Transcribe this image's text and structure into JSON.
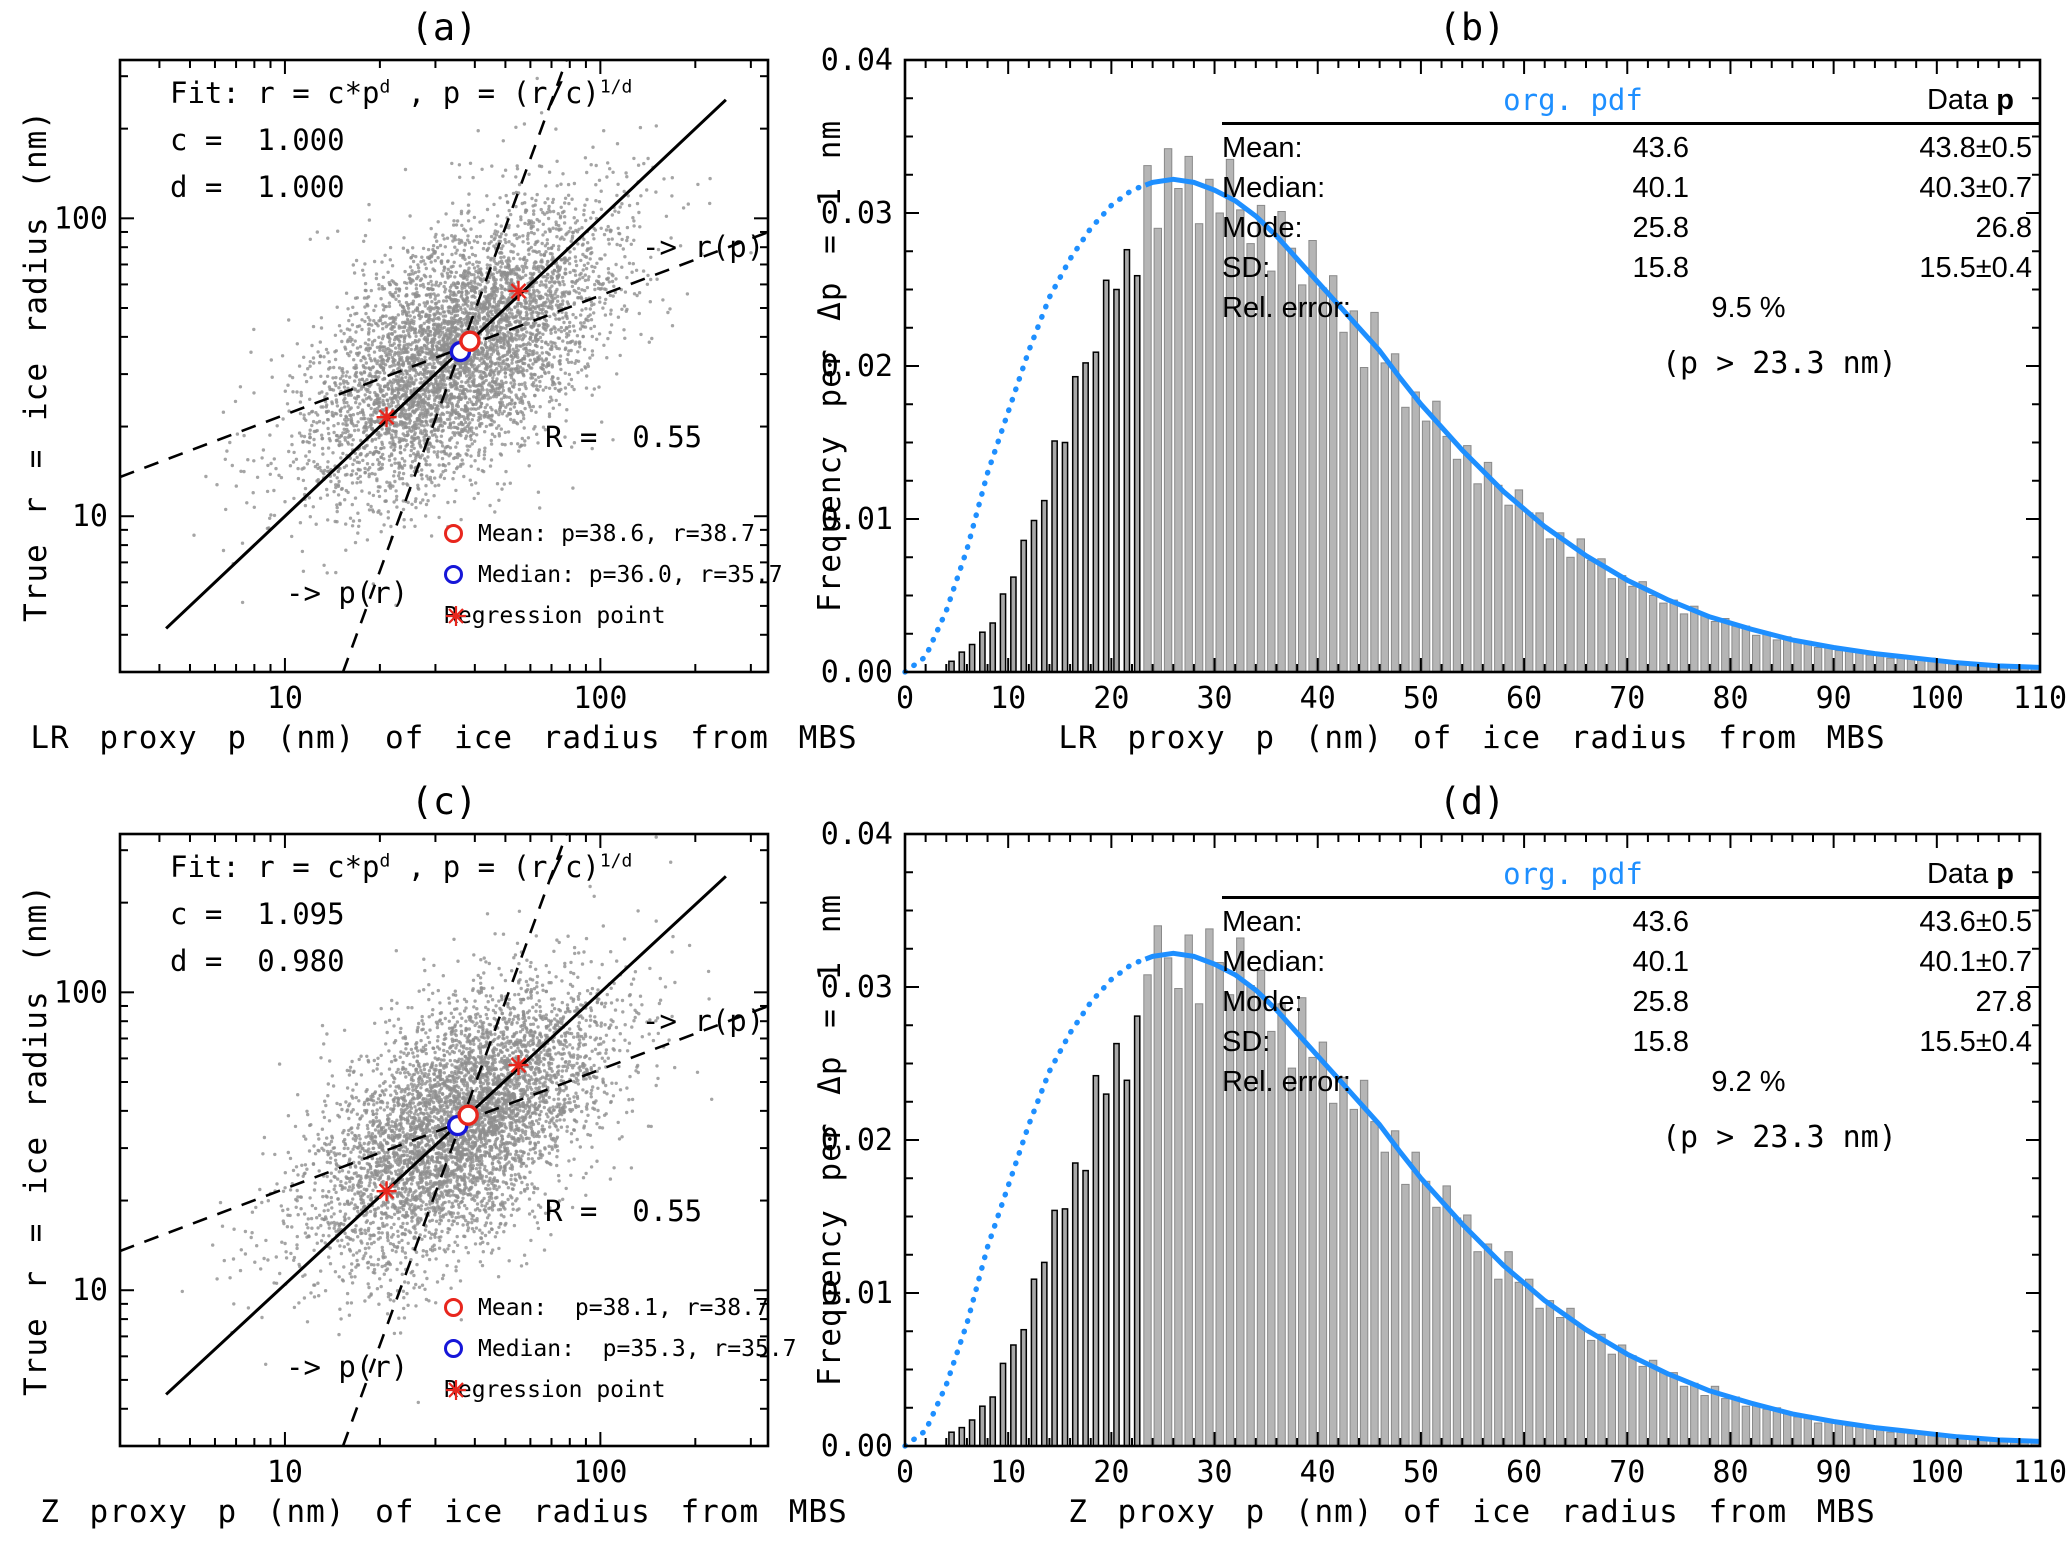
{
  "colors": {
    "accent_blue": "#1e8fff",
    "red": "#e8261d",
    "blue": "#1616d8",
    "gray_points": "#8f8f8f",
    "bar_fill": "#b5b5b5",
    "bar_edge": "#8a8a8a"
  },
  "chart_data": [
    {
      "id": "a",
      "type": "scatter",
      "title": "(a)",
      "xlabel": "LR proxy p (nm) of ice radius from MBS",
      "ylabel": "True r = ice radius (nm)",
      "xscale": "log",
      "yscale": "log",
      "xlim": [
        3,
        340
      ],
      "ylim": [
        3,
        340
      ],
      "major_ticks": [
        10,
        100
      ],
      "minor_ticks": [
        4,
        5,
        6,
        7,
        8,
        9,
        20,
        30,
        40,
        50,
        60,
        70,
        80,
        90,
        200,
        300
      ],
      "fit": {
        "prefix": "Fit: r = c*p",
        "sup1": "d",
        "mid": " , p = (r/c)",
        "sup2": "1/d",
        "c_line": "c =  1.000",
        "d_line": "d =  1.000"
      },
      "fit_coeffs": {
        "c": 1.0,
        "d": 1.0
      },
      "R_value": 0.55,
      "r_label": "R =  0.55",
      "legend": {
        "mean": "Mean: p=38.6, r=38.7",
        "median": "Median: p=36.0, r=35.7",
        "regression": "Regression point"
      },
      "mean_point": {
        "p": 38.6,
        "r": 38.7
      },
      "median_point": {
        "p": 36.0,
        "r": 35.7
      },
      "regression_points": [
        [
          21,
          21.5
        ],
        [
          55,
          57
        ]
      ],
      "rp_line": {
        "slope": 0.4,
        "through": [
          37,
          37
        ],
        "label": "-> r(p)"
      },
      "pr_line": {
        "slope": 2.9,
        "through": [
          36,
          36
        ],
        "label": "-> p(r)"
      },
      "scatter_cloud": {
        "n": 5000,
        "seed": 7,
        "mu_ln": 3.58,
        "sigma_ln": 0.54,
        "correlation": 0.55
      }
    },
    {
      "id": "b",
      "type": "histogram",
      "title": "(b)",
      "xlabel": "LR proxy p (nm) of ice radius from MBS",
      "ylabel": "Frequency per Δp = 1 nm",
      "xlim": [
        0,
        110
      ],
      "ylim": [
        0,
        0.04
      ],
      "xticks": [
        0,
        10,
        20,
        30,
        40,
        50,
        60,
        70,
        80,
        90,
        100,
        110
      ],
      "yticks": [
        0.0,
        0.01,
        0.02,
        0.03,
        0.04
      ],
      "cutoff": 23.3,
      "note": "(p > 23.3 nm)",
      "stats": {
        "col1_header": "org. pdf",
        "col2_header": "Data",
        "col2_header_p": "p",
        "rows": [
          {
            "label": "Mean:",
            "pdf": "43.6",
            "data": "43.8±0.5"
          },
          {
            "label": "Median:",
            "pdf": "40.1",
            "data": "40.3±0.7"
          },
          {
            "label": "Mode:",
            "pdf": "25.8",
            "data": "26.8"
          },
          {
            "label": "SD:",
            "pdf": "15.8",
            "data": "15.5±0.4"
          }
        ],
        "rel_error_label": "Rel. error:",
        "rel_error": "9.5 %"
      },
      "pdf_curve": {
        "x": [
          0,
          2,
          4,
          6,
          8,
          10,
          12,
          14,
          16,
          18,
          20,
          22,
          24,
          26,
          28,
          30,
          32,
          34,
          36,
          38,
          40,
          42,
          44,
          46,
          48,
          50,
          54,
          58,
          62,
          66,
          70,
          74,
          78,
          82,
          86,
          90,
          94,
          98,
          102,
          106,
          110
        ],
        "y": [
          0,
          0.001,
          0.004,
          0.008,
          0.013,
          0.017,
          0.021,
          0.0245,
          0.027,
          0.029,
          0.0305,
          0.0315,
          0.032,
          0.0322,
          0.032,
          0.0315,
          0.0308,
          0.0298,
          0.0285,
          0.027,
          0.0255,
          0.024,
          0.0225,
          0.021,
          0.0192,
          0.0175,
          0.0145,
          0.0118,
          0.0095,
          0.0076,
          0.006,
          0.0047,
          0.0036,
          0.0028,
          0.0021,
          0.0016,
          0.0012,
          0.0009,
          0.0006,
          0.0004,
          0.0003
        ]
      },
      "bars": {
        "start": 0,
        "width": 1,
        "values": [
          0,
          0,
          0,
          0,
          0.0007,
          0.0013,
          0.0018,
          0.0026,
          0.0032,
          0.0051,
          0.0062,
          0.0086,
          0.0099,
          0.0112,
          0.0151,
          0.015,
          0.0193,
          0.0202,
          0.0209,
          0.0256,
          0.025,
          0.0276,
          0.0259,
          0.0331,
          0.029,
          0.0342,
          0.0316,
          0.0337,
          0.0293,
          0.0322,
          0.03,
          0.0335,
          0.0302,
          0.028,
          0.0305,
          0.0262,
          0.0301,
          0.0277,
          0.0253,
          0.0282,
          0.0251,
          0.0259,
          0.0222,
          0.0236,
          0.0199,
          0.0235,
          0.0202,
          0.0208,
          0.0173,
          0.0183,
          0.0164,
          0.0177,
          0.0154,
          0.0139,
          0.0148,
          0.0123,
          0.0137,
          0.0122,
          0.0109,
          0.0119,
          0.0104,
          0.0104,
          0.0087,
          0.0091,
          0.0075,
          0.0087,
          0.0073,
          0.0074,
          0.0061,
          0.0063,
          0.0056,
          0.0059,
          0.005,
          0.0045,
          0.0047,
          0.0038,
          0.0043,
          0.0037,
          0.0033,
          0.0035,
          0.003,
          0.003,
          0.0024,
          0.0026,
          0.0021,
          0.0023,
          0.002,
          0.002,
          0.0016,
          0.0016,
          0.0014,
          0.0015,
          0.0013,
          0.0011,
          0.0011,
          0.0009,
          0.0011,
          0.0009,
          0.0008,
          0.0009,
          0.0007,
          0.0006,
          0.0006,
          0.0005,
          0.0005,
          0.0004,
          0.0004,
          0.0003,
          0.0003,
          0.0003
        ]
      }
    },
    {
      "id": "c",
      "type": "scatter",
      "title": "(c)",
      "xlabel": "Z proxy p (nm) of ice radius from MBS",
      "ylabel": "True r = ice radius (nm)",
      "xscale": "log",
      "yscale": "log",
      "xlim": [
        3,
        340
      ],
      "ylim": [
        3,
        340
      ],
      "major_ticks": [
        10,
        100
      ],
      "minor_ticks": [
        4,
        5,
        6,
        7,
        8,
        9,
        20,
        30,
        40,
        50,
        60,
        70,
        80,
        90,
        200,
        300
      ],
      "fit": {
        "prefix": "Fit: r = c*p",
        "sup1": "d",
        "mid": " , p = (r/c)",
        "sup2": "1/d",
        "c_line": "c =  1.095",
        "d_line": "d =  0.980"
      },
      "fit_coeffs": {
        "c": 1.095,
        "d": 0.98
      },
      "R_value": 0.55,
      "r_label": "R =  0.55",
      "legend": {
        "mean": "Mean:  p=38.1, r=38.7",
        "median": "Median:  p=35.3, r=35.7",
        "regression": "Regression point"
      },
      "mean_point": {
        "p": 38.1,
        "r": 38.7
      },
      "median_point": {
        "p": 35.3,
        "r": 35.7
      },
      "regression_points": [
        [
          21,
          21.5
        ],
        [
          55,
          57
        ]
      ],
      "rp_line": {
        "slope": 0.4,
        "through": [
          37,
          37
        ],
        "label": "-> r(p)"
      },
      "pr_line": {
        "slope": 2.9,
        "through": [
          36,
          36
        ],
        "label": "-> p(r)"
      },
      "scatter_cloud": {
        "n": 5000,
        "seed": 13,
        "mu_ln": 3.58,
        "sigma_ln": 0.54,
        "correlation": 0.55
      }
    },
    {
      "id": "d",
      "type": "histogram",
      "title": "(d)",
      "xlabel": "Z proxy p (nm) of ice radius from MBS",
      "ylabel": "Frequency per Δp = 1 nm",
      "xlim": [
        0,
        110
      ],
      "ylim": [
        0,
        0.04
      ],
      "xticks": [
        0,
        10,
        20,
        30,
        40,
        50,
        60,
        70,
        80,
        90,
        100,
        110
      ],
      "yticks": [
        0.0,
        0.01,
        0.02,
        0.03,
        0.04
      ],
      "cutoff": 23.3,
      "note": "(p > 23.3 nm)",
      "stats": {
        "col1_header": "org. pdf",
        "col2_header": "Data",
        "col2_header_p": "p",
        "rows": [
          {
            "label": "Mean:",
            "pdf": "43.6",
            "data": "43.6±0.5"
          },
          {
            "label": "Median:",
            "pdf": "40.1",
            "data": "40.1±0.7"
          },
          {
            "label": "Mode:",
            "pdf": "25.8",
            "data": "27.8"
          },
          {
            "label": "SD:",
            "pdf": "15.8",
            "data": "15.5±0.4"
          }
        ],
        "rel_error_label": "Rel. error:",
        "rel_error": "9.2 %"
      },
      "pdf_curve": {
        "x": [
          0,
          2,
          4,
          6,
          8,
          10,
          12,
          14,
          16,
          18,
          20,
          22,
          24,
          26,
          28,
          30,
          32,
          34,
          36,
          38,
          40,
          42,
          44,
          46,
          48,
          50,
          54,
          58,
          62,
          66,
          70,
          74,
          78,
          82,
          86,
          90,
          94,
          98,
          102,
          106,
          110
        ],
        "y": [
          0,
          0.001,
          0.004,
          0.008,
          0.013,
          0.017,
          0.021,
          0.0245,
          0.027,
          0.029,
          0.0305,
          0.0315,
          0.032,
          0.0322,
          0.032,
          0.0315,
          0.0308,
          0.0298,
          0.0285,
          0.027,
          0.0255,
          0.024,
          0.0225,
          0.021,
          0.0192,
          0.0175,
          0.0145,
          0.0118,
          0.0095,
          0.0076,
          0.006,
          0.0047,
          0.0036,
          0.0028,
          0.0021,
          0.0016,
          0.0012,
          0.0009,
          0.0006,
          0.0004,
          0.0003
        ]
      },
      "bars": {
        "start": 0,
        "width": 1,
        "values": [
          0,
          0,
          0,
          0,
          0.0009,
          0.0012,
          0.0017,
          0.0026,
          0.0032,
          0.0054,
          0.0066,
          0.0076,
          0.0109,
          0.012,
          0.0154,
          0.0155,
          0.0185,
          0.018,
          0.0242,
          0.023,
          0.0263,
          0.0239,
          0.0281,
          0.0308,
          0.034,
          0.0319,
          0.0299,
          0.0334,
          0.0289,
          0.0338,
          0.0316,
          0.0295,
          0.0332,
          0.0301,
          0.0311,
          0.0271,
          0.0289,
          0.0247,
          0.0293,
          0.0254,
          0.0264,
          0.0224,
          0.0241,
          0.022,
          0.0239,
          0.0212,
          0.0192,
          0.0206,
          0.0171,
          0.0192,
          0.0173,
          0.0156,
          0.017,
          0.0149,
          0.0151,
          0.0127,
          0.0132,
          0.0109,
          0.0127,
          0.0107,
          0.0109,
          0.009,
          0.0095,
          0.0084,
          0.009,
          0.0078,
          0.0069,
          0.0073,
          0.006,
          0.0066,
          0.0059,
          0.0052,
          0.0056,
          0.0048,
          0.0048,
          0.0039,
          0.0041,
          0.0033,
          0.0039,
          0.0031,
          0.0032,
          0.0026,
          0.0027,
          0.0024,
          0.0025,
          0.0021,
          0.0019,
          0.002,
          0.0015,
          0.0017,
          0.0015,
          0.0013,
          0.0014,
          0.0012,
          0.0012,
          0.0009,
          0.001,
          0.0008,
          0.0009,
          0.0008,
          0.0007,
          0.0006,
          0.0006,
          0.0005,
          0.0005,
          0.0004,
          0.0004,
          0.0003,
          0.0003,
          0.0003
        ]
      }
    }
  ]
}
